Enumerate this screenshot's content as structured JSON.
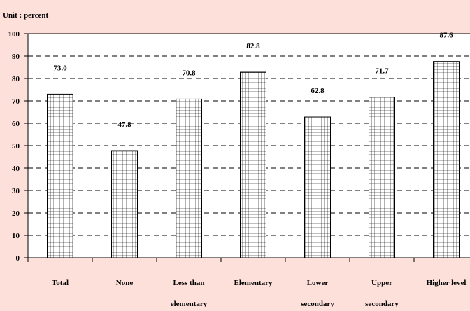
{
  "chart_data": {
    "type": "bar",
    "unit_label": "Unit : percent",
    "categories": [
      [
        "Total"
      ],
      [
        "None"
      ],
      [
        "Less than",
        "elementary"
      ],
      [
        "Elementary"
      ],
      [
        "Lower",
        "secondary"
      ],
      [
        "Upper",
        "secondary"
      ],
      [
        "Higher level"
      ]
    ],
    "values": [
      73.0,
      47.8,
      70.8,
      82.8,
      62.8,
      71.7,
      87.6
    ],
    "value_labels": [
      "73.0",
      "47.8",
      "70.8",
      "82.8",
      "62.8",
      "71.7",
      "87.6"
    ],
    "ylim": [
      0,
      100
    ],
    "yticks": [
      0,
      10,
      20,
      30,
      40,
      50,
      60,
      70,
      80,
      90,
      100
    ],
    "grid": "dashed-horizontal",
    "colors": {
      "background": "#fde0d9",
      "plot": "#ffffff",
      "bar_fill": "#ffffff",
      "bar_pattern": "#000000"
    }
  }
}
